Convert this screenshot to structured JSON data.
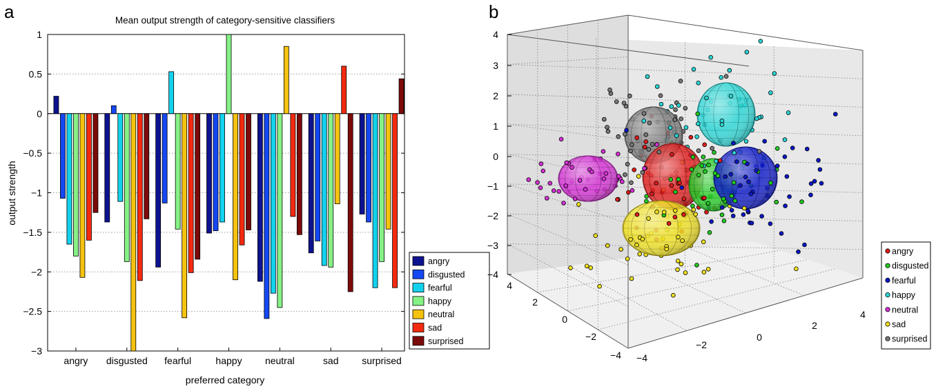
{
  "panel_a": {
    "letter": "a",
    "chart_data": {
      "type": "bar",
      "title": "Mean output strength of category-sensitive classifiers",
      "xlabel": "preferred category",
      "ylabel": "output strength",
      "ylim": [
        -3,
        1
      ],
      "yticks": [
        1,
        0.5,
        0,
        -0.5,
        -1,
        -1.5,
        -2,
        -2.5,
        -3
      ],
      "ytick_labels": [
        "1",
        "0.5",
        "0",
        "−0.5",
        "−1",
        "−1.5",
        "−2",
        "−2.5",
        "−3"
      ],
      "grid": "horizontal dotted",
      "legend_position": "right",
      "categories": [
        "angry",
        "disgusted",
        "fearful",
        "happy",
        "neutral",
        "sad",
        "surprised"
      ],
      "series": [
        {
          "name": "angry",
          "color": "#0d138f",
          "values": [
            0.22,
            -1.37,
            -1.94,
            -1.51,
            -2.12,
            -1.76,
            -1.27
          ]
        },
        {
          "name": "disgusted",
          "color": "#1448f2",
          "values": [
            -1.07,
            0.1,
            -1.13,
            -1.48,
            -2.59,
            -1.61,
            -1.37
          ]
        },
        {
          "name": "fearful",
          "color": "#12d2ee",
          "values": [
            -1.65,
            -1.11,
            0.53,
            -1.37,
            -2.27,
            -1.92,
            -2.2
          ]
        },
        {
          "name": "happy",
          "color": "#86f286",
          "values": [
            -1.8,
            -1.87,
            -1.46,
            1.0,
            -2.45,
            -1.94,
            -1.87
          ]
        },
        {
          "name": "neutral",
          "color": "#f5c20f",
          "values": [
            -2.07,
            -3.0,
            -2.58,
            -2.1,
            0.85,
            -1.14,
            -1.46
          ]
        },
        {
          "name": "sad",
          "color": "#f42a10",
          "values": [
            -1.6,
            -2.11,
            -2.01,
            -1.66,
            -1.3,
            0.6,
            -2.2
          ]
        },
        {
          "name": "surprised",
          "color": "#7d0a0a",
          "values": [
            -1.25,
            -1.33,
            -1.84,
            -1.47,
            -1.53,
            -2.25,
            0.44
          ]
        }
      ]
    }
  },
  "panel_b": {
    "letter": "b",
    "chart_data": {
      "type": "scatter",
      "dimensions": 3,
      "xlim": [
        -4,
        4
      ],
      "ylim": [
        -4,
        4
      ],
      "zlim": [
        -4,
        4
      ],
      "x_ticks": [
        "−4",
        "−2",
        "0",
        "2",
        "4"
      ],
      "y_ticks": [
        "−4",
        "−2",
        "0",
        "2",
        "4"
      ],
      "z_ticks": [
        "4",
        "3",
        "2",
        "1",
        "0",
        "−1",
        "−2",
        "−3",
        "−4"
      ],
      "grid": "dotted",
      "legend_position": "bottom-right",
      "series": [
        {
          "name": "angry",
          "color": "#e01b1b"
        },
        {
          "name": "disgusted",
          "color": "#22cc22"
        },
        {
          "name": "fearful",
          "color": "#0c18c8"
        },
        {
          "name": "happy",
          "color": "#2ad6d6"
        },
        {
          "name": "neutral",
          "color": "#d62fd6"
        },
        {
          "name": "sad",
          "color": "#f0e020"
        },
        {
          "name": "surprised",
          "color": "#7a7a7a"
        }
      ]
    }
  }
}
